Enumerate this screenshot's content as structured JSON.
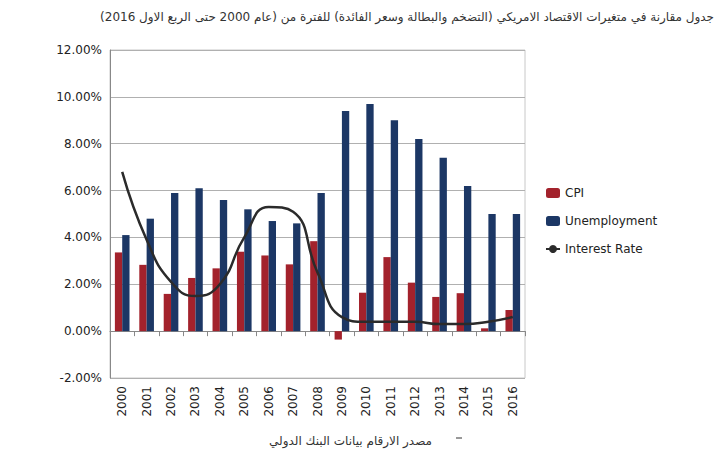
{
  "chart_data": {
    "type": "bar",
    "title": "جدول مقارنة في متغيرات الاقتصاد الامريكي (التضخم والبطالة وسعر الفائدة) للفترة من (عام 2000 حتى الربع الاول 2016)",
    "annotations": [
      "مصدر الارقام بيانات البنك الدولي"
    ],
    "categories": [
      "2000",
      "2001",
      "2002",
      "2003",
      "2004",
      "2005",
      "2006",
      "2007",
      "2008",
      "2009",
      "2010",
      "2011",
      "2012",
      "2013",
      "2014",
      "2015",
      "2016"
    ],
    "series": [
      {
        "name": "CPI",
        "type": "bar",
        "color": "#a3222c",
        "values": [
          3.36,
          2.83,
          1.59,
          2.27,
          2.68,
          3.39,
          3.23,
          2.85,
          3.84,
          -0.36,
          1.64,
          3.16,
          2.07,
          1.46,
          1.62,
          0.12,
          0.9
        ]
      },
      {
        "name": "Unemployment",
        "type": "bar",
        "color": "#1c3765",
        "values": [
          4.1,
          4.8,
          5.9,
          6.1,
          5.6,
          5.2,
          4.7,
          4.6,
          5.9,
          9.4,
          9.7,
          9.0,
          8.2,
          7.4,
          6.2,
          5.0,
          5.0
        ]
      },
      {
        "name": "Interest Rate",
        "type": "line",
        "color": "#2b2b2b",
        "line_style": "solid",
        "values": [
          6.8,
          3.9,
          2.1,
          1.5,
          2.0,
          4.0,
          5.3,
          5.1,
          2.5,
          0.6,
          0.4,
          0.4,
          0.4,
          0.3,
          0.3,
          0.4,
          0.6
        ]
      }
    ],
    "ylim": [
      -2,
      12
    ],
    "yticks": [
      {
        "value": -2,
        "label": "-2.00%"
      },
      {
        "value": 0,
        "label": "0.00%"
      },
      {
        "value": 2,
        "label": "2.00%"
      },
      {
        "value": 4,
        "label": "4.00%"
      },
      {
        "value": 6,
        "label": "6.00%"
      },
      {
        "value": 8,
        "label": "8.00%"
      },
      {
        "value": 10,
        "label": "10.00%"
      },
      {
        "value": 12,
        "label": "12.00%"
      }
    ],
    "grid": true,
    "legend": "right"
  }
}
